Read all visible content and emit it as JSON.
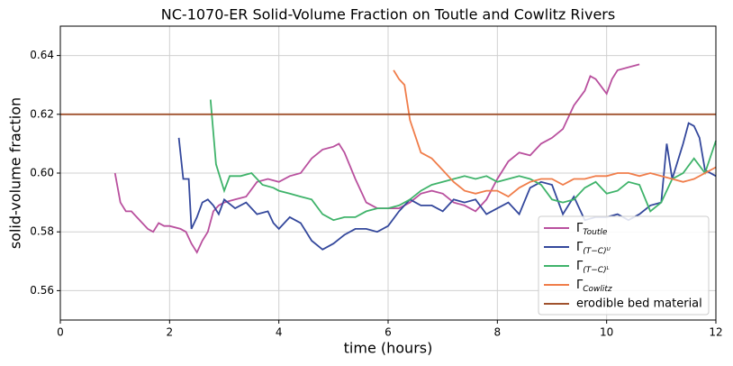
{
  "chart_data": {
    "type": "line",
    "title": "NC-1070-ER Solid-Volume Fraction on Toutle and Cowlitz Rivers",
    "xlabel": "time (hours)",
    "ylabel": "solid-volume fraction",
    "xlim": [
      0,
      12
    ],
    "ylim": [
      0.55,
      0.65
    ],
    "xticks": [
      0,
      2,
      4,
      6,
      8,
      10,
      12
    ],
    "yticks": [
      0.56,
      0.58,
      {
        "value": 0.6,
        "label": "0.60"
      },
      0.62,
      0.64
    ],
    "grid": true,
    "legend": "lower right",
    "series": [
      {
        "name": "ΓToutle",
        "color": "#b9509e",
        "x": [
          1.0,
          1.1,
          1.2,
          1.3,
          1.4,
          1.5,
          1.6,
          1.7,
          1.8,
          1.9,
          2.0,
          2.2,
          2.3,
          2.4,
          2.5,
          2.6,
          2.7,
          2.8,
          2.9,
          3.0,
          3.2,
          3.4,
          3.6,
          3.8,
          4.0,
          4.2,
          4.4,
          4.6,
          4.8,
          5.0,
          5.1,
          5.2,
          5.4,
          5.6,
          5.8,
          6.0,
          6.2,
          6.4,
          6.6,
          6.8,
          7.0,
          7.2,
          7.4,
          7.6,
          7.8,
          8.0,
          8.2,
          8.4,
          8.6,
          8.8,
          9.0,
          9.2,
          9.4,
          9.6,
          9.7,
          9.8,
          10.0,
          10.1,
          10.2,
          10.4,
          10.6
        ],
        "values": [
          0.6,
          0.59,
          0.587,
          0.587,
          0.585,
          0.583,
          0.581,
          0.58,
          0.583,
          0.582,
          0.582,
          0.581,
          0.58,
          0.576,
          0.573,
          0.577,
          0.58,
          0.587,
          0.589,
          0.59,
          0.591,
          0.592,
          0.597,
          0.598,
          0.597,
          0.599,
          0.6,
          0.605,
          0.608,
          0.609,
          0.61,
          0.607,
          0.598,
          0.59,
          0.588,
          0.588,
          0.588,
          0.59,
          0.593,
          0.594,
          0.593,
          0.59,
          0.589,
          0.587,
          0.591,
          0.598,
          0.604,
          0.607,
          0.606,
          0.61,
          0.612,
          0.615,
          0.623,
          0.628,
          0.633,
          0.632,
          0.627,
          0.632,
          0.635,
          0.636,
          0.637
        ]
      },
      {
        "name": "Γ(T−C)ᵁ",
        "color": "#34489c",
        "x": [
          2.17,
          2.25,
          2.35,
          2.4,
          2.5,
          2.6,
          2.7,
          2.8,
          2.9,
          3.0,
          3.2,
          3.4,
          3.6,
          3.8,
          3.9,
          4.0,
          4.2,
          4.4,
          4.6,
          4.8,
          5.0,
          5.2,
          5.4,
          5.6,
          5.8,
          6.0,
          6.2,
          6.4,
          6.6,
          6.8,
          7.0,
          7.2,
          7.4,
          7.6,
          7.8,
          8.0,
          8.2,
          8.4,
          8.6,
          8.8,
          9.0,
          9.2,
          9.4,
          9.6,
          9.8,
          10.0,
          10.2,
          10.4,
          10.6,
          10.8,
          11.0,
          11.1,
          11.2,
          11.4,
          11.5,
          11.6,
          11.7,
          11.8,
          12.0
        ],
        "values": [
          0.612,
          0.598,
          0.598,
          0.581,
          0.585,
          0.59,
          0.591,
          0.589,
          0.586,
          0.591,
          0.588,
          0.59,
          0.586,
          0.587,
          0.583,
          0.581,
          0.585,
          0.583,
          0.577,
          0.574,
          0.576,
          0.579,
          0.581,
          0.581,
          0.58,
          0.582,
          0.587,
          0.591,
          0.589,
          0.589,
          0.587,
          0.591,
          0.59,
          0.591,
          0.586,
          0.588,
          0.59,
          0.586,
          0.595,
          0.597,
          0.596,
          0.586,
          0.592,
          0.584,
          0.585,
          0.585,
          0.586,
          0.584,
          0.586,
          0.589,
          0.59,
          0.61,
          0.598,
          0.61,
          0.617,
          0.616,
          0.612,
          0.601,
          0.599
        ]
      },
      {
        "name": "Γ(T−C)ᴸ",
        "color": "#3fb36a",
        "x": [
          2.75,
          2.85,
          3.0,
          3.1,
          3.3,
          3.5,
          3.7,
          3.9,
          4.0,
          4.2,
          4.4,
          4.6,
          4.8,
          5.0,
          5.2,
          5.4,
          5.6,
          5.8,
          6.0,
          6.2,
          6.4,
          6.6,
          6.8,
          7.0,
          7.2,
          7.4,
          7.6,
          7.8,
          8.0,
          8.2,
          8.4,
          8.6,
          8.8,
          9.0,
          9.2,
          9.4,
          9.6,
          9.8,
          10.0,
          10.2,
          10.4,
          10.6,
          10.8,
          11.0,
          11.2,
          11.4,
          11.6,
          11.8,
          12.0
        ],
        "values": [
          0.625,
          0.603,
          0.594,
          0.599,
          0.599,
          0.6,
          0.596,
          0.595,
          0.594,
          0.593,
          0.592,
          0.591,
          0.586,
          0.584,
          0.585,
          0.585,
          0.587,
          0.588,
          0.588,
          0.589,
          0.591,
          0.594,
          0.596,
          0.597,
          0.598,
          0.599,
          0.598,
          0.599,
          0.597,
          0.598,
          0.599,
          0.598,
          0.596,
          0.591,
          0.59,
          0.591,
          0.595,
          0.597,
          0.593,
          0.594,
          0.597,
          0.596,
          0.587,
          0.59,
          0.598,
          0.6,
          0.605,
          0.6,
          0.611
        ]
      },
      {
        "name": "ΓCowlitz",
        "color": "#f07d4a",
        "x": [
          6.1,
          6.2,
          6.3,
          6.4,
          6.6,
          6.8,
          7.0,
          7.2,
          7.4,
          7.6,
          7.8,
          8.0,
          8.2,
          8.4,
          8.6,
          8.8,
          9.0,
          9.2,
          9.4,
          9.6,
          9.8,
          10.0,
          10.2,
          10.4,
          10.6,
          10.8,
          11.0,
          11.2,
          11.4,
          11.6,
          11.8,
          12.0
        ],
        "values": [
          0.635,
          0.632,
          0.63,
          0.618,
          0.607,
          0.605,
          0.601,
          0.597,
          0.594,
          0.593,
          0.594,
          0.594,
          0.592,
          0.595,
          0.597,
          0.598,
          0.598,
          0.596,
          0.598,
          0.598,
          0.599,
          0.599,
          0.6,
          0.6,
          0.599,
          0.6,
          0.599,
          0.598,
          0.597,
          0.598,
          0.6,
          0.602
        ]
      },
      {
        "name": "erodible bed material",
        "color": "#a0522d",
        "x": [
          0,
          12
        ],
        "values": [
          0.62,
          0.62
        ]
      }
    ]
  }
}
